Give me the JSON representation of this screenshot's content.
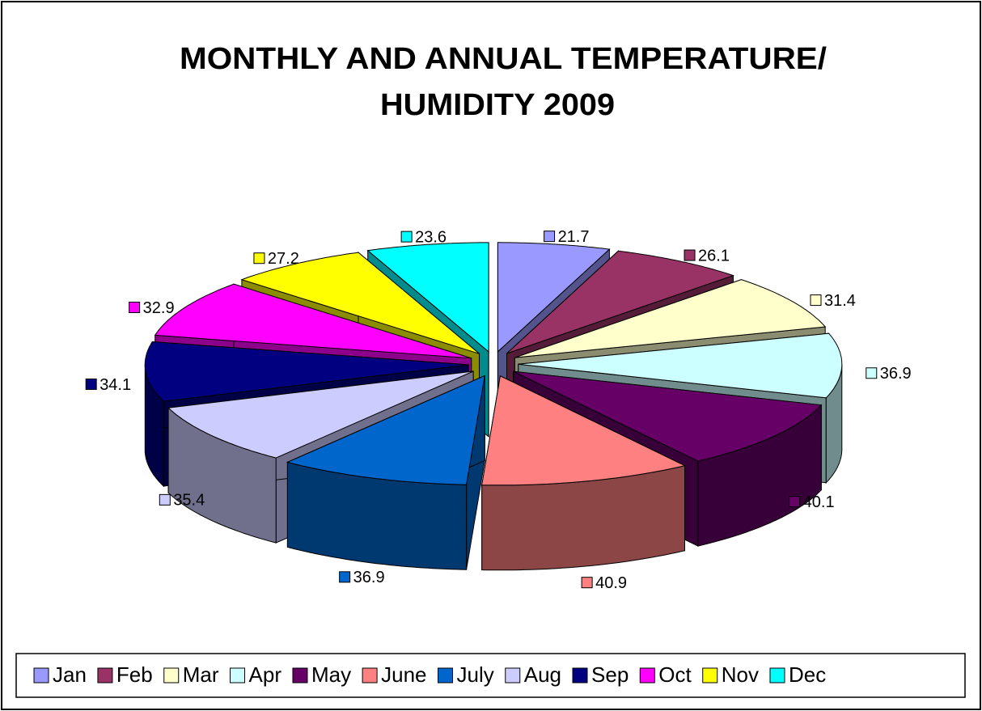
{
  "chart_data": {
    "type": "pie3d",
    "title": [
      "MONTHLY AND ANNUAL TEMPERATURE/",
      "HUMIDITY 2009"
    ],
    "categories": [
      "Jan",
      "Feb",
      "Mar",
      "Apr",
      "May",
      "June",
      "July",
      "Aug",
      "Sep",
      "Oct",
      "Nov",
      "Dec"
    ],
    "values": [
      21.7,
      26.1,
      31.4,
      36.9,
      40.1,
      40.9,
      36.9,
      35.4,
      34.1,
      32.9,
      27.2,
      23.6
    ],
    "colors": [
      "#9999ff",
      "#993366",
      "#ffffcc",
      "#ccffff",
      "#660066",
      "#ff8080",
      "#0066cc",
      "#ccccff",
      "#000080",
      "#ff00ff",
      "#ffff00",
      "#00ffff"
    ],
    "legend": "bottom"
  }
}
